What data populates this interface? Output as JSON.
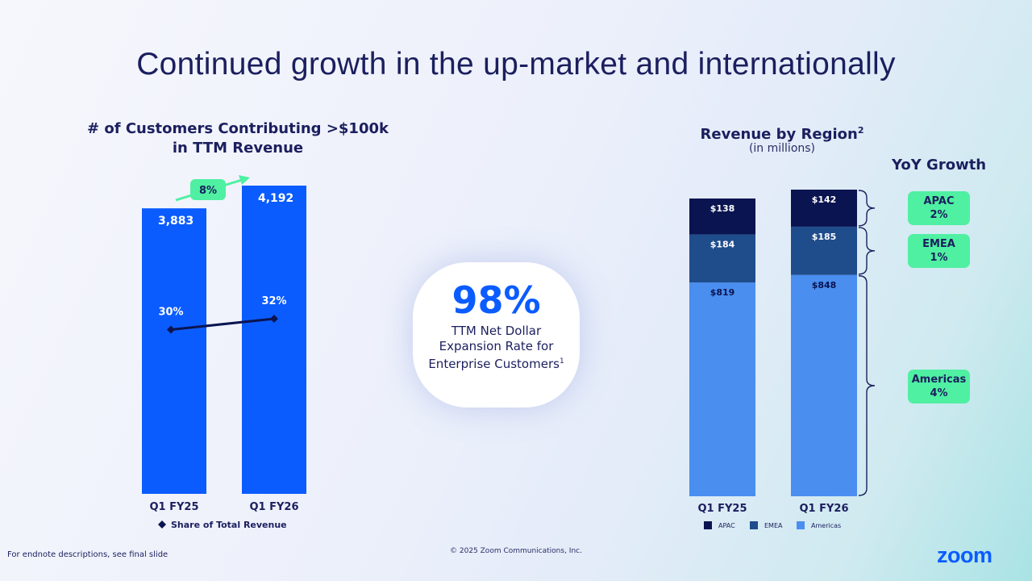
{
  "slide": {
    "title": "Continued growth in the up-market and internationally",
    "footnote": "For endnote descriptions, see final slide",
    "copyright": "© 2025 Zoom Communications, Inc.",
    "logo": "zoom"
  },
  "kpi": {
    "value": "98%",
    "label_line1": "TTM Net Dollar",
    "label_line2": "Expansion Rate for",
    "label_line3": "Enterprise Customers",
    "footnote_mark": "1"
  },
  "colors": {
    "bar_blue": "#0b5cff",
    "americas": "#4a8ef0",
    "emea": "#1f4d8c",
    "apac": "#0a1450",
    "badge_green": "#4ff0a2",
    "title_navy": "#1b1f5e"
  },
  "chart_data": [
    {
      "type": "bar",
      "title_line1": "# of Customers Contributing >$100k",
      "title_line2": "in TTM Revenue",
      "categories": [
        "Q1 FY25",
        "Q1 FY26"
      ],
      "values": [
        3883,
        4192
      ],
      "value_labels": [
        "3,883",
        "4,192"
      ],
      "growth_label": "8%",
      "ylim": [
        0,
        4192
      ],
      "overlay_line": {
        "name": "Share of Total Revenue",
        "values": [
          30,
          32
        ],
        "labels": [
          "30%",
          "32%"
        ]
      }
    },
    {
      "type": "bar",
      "stacked": true,
      "title": "Revenue by Region",
      "title_sup": "2",
      "subtitle": "(in millions)",
      "categories": [
        "Q1 FY25",
        "Q1 FY26"
      ],
      "series": [
        {
          "name": "Americas",
          "values": [
            819,
            848
          ],
          "labels": [
            "$819",
            "$848"
          ]
        },
        {
          "name": "EMEA",
          "values": [
            184,
            185
          ],
          "labels": [
            "$184",
            "$185"
          ]
        },
        {
          "name": "APAC",
          "values": [
            138,
            142
          ],
          "labels": [
            "$138",
            "$142"
          ]
        }
      ],
      "legend_order": [
        "APAC",
        "EMEA",
        "Americas"
      ],
      "legend_position": "bottom",
      "yoy_title": "YoY Growth",
      "yoy": [
        {
          "region": "APAC",
          "growth": "2%"
        },
        {
          "region": "EMEA",
          "growth": "1%"
        },
        {
          "region": "Americas",
          "growth": "4%"
        }
      ]
    }
  ]
}
